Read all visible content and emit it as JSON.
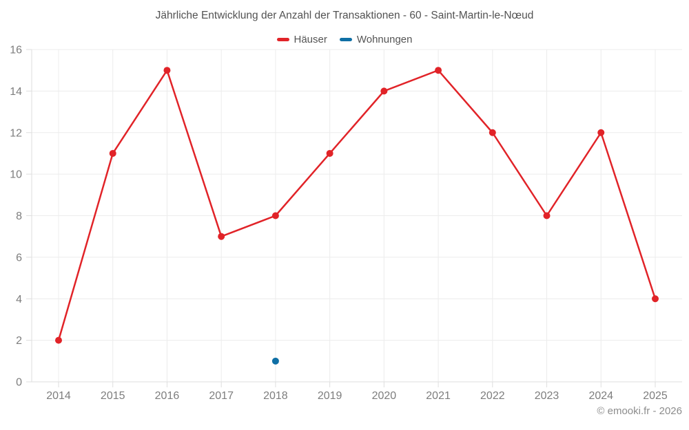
{
  "header": {
    "title": "Jährliche Entwicklung der Anzahl der Transaktionen - 60 - Saint-Martin-le-Nœud"
  },
  "legend": {
    "items": [
      {
        "label": "Häuser",
        "color": "#e12328"
      },
      {
        "label": "Wohnungen",
        "color": "#0f6fa5"
      }
    ]
  },
  "footer": {
    "copyright": "© emooki.fr - 2026"
  },
  "colors": {
    "background": "#ffffff",
    "grid": "#ececec",
    "axis": "#dedede",
    "tick_text": "#7d7d7d",
    "title_text": "#525252",
    "footer_text": "#8c8c8c"
  },
  "chart_data": {
    "type": "line",
    "title": "Jährliche Entwicklung der Anzahl der Transaktionen - 60 - Saint-Martin-le-Nœud",
    "categories": [
      "2014",
      "2015",
      "2016",
      "2017",
      "2018",
      "2019",
      "2020",
      "2021",
      "2022",
      "2023",
      "2024",
      "2025"
    ],
    "series": [
      {
        "name": "Häuser",
        "color": "#e12328",
        "values": [
          2,
          11,
          15,
          7,
          8,
          11,
          14,
          15,
          12,
          8,
          12,
          4
        ]
      },
      {
        "name": "Wohnungen",
        "color": "#0f6fa5",
        "values": [
          null,
          null,
          null,
          null,
          1,
          null,
          null,
          null,
          null,
          null,
          null,
          null
        ]
      }
    ],
    "xlabel": "",
    "ylabel": "",
    "ylim": [
      0,
      16
    ],
    "ytick_step": 2,
    "grid": true,
    "legend_position": "top",
    "point_radius": 5,
    "line_width": 2.5
  }
}
